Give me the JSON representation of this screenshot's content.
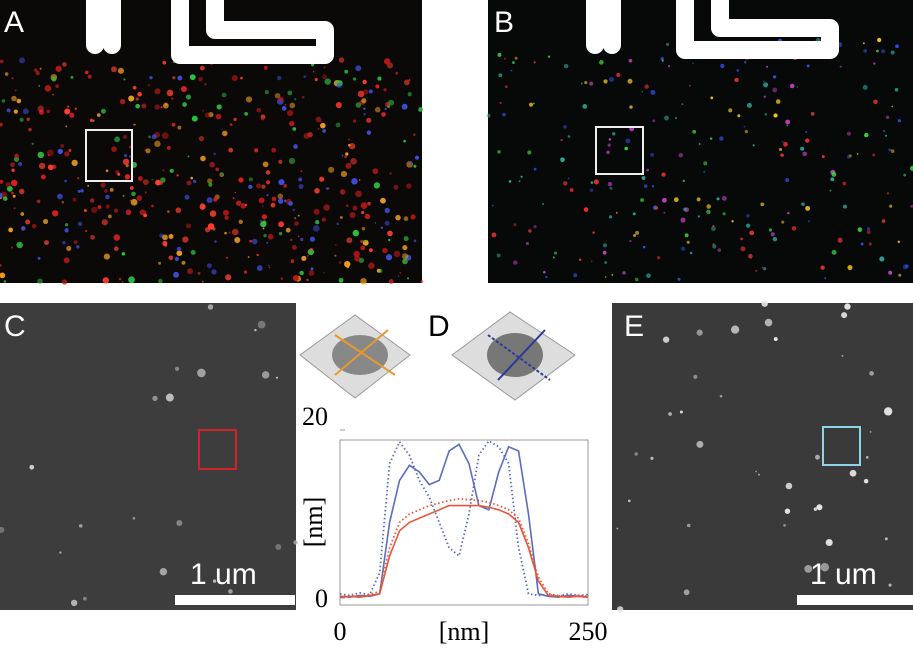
{
  "panels": {
    "a": "A",
    "b": "B",
    "c": "C",
    "d": "D",
    "e": "E"
  },
  "scale_bars": {
    "c": "1 um",
    "e": "1 um"
  },
  "chart_data": {
    "type": "line",
    "x": [
      0,
      10,
      20,
      30,
      40,
      50,
      60,
      70,
      80,
      90,
      100,
      110,
      120,
      130,
      140,
      150,
      160,
      170,
      180,
      190,
      200,
      210,
      220,
      230,
      240,
      250
    ],
    "series": [
      {
        "name": "blue solid",
        "color": "#5a6cc0",
        "dash": false,
        "values": [
          0.2,
          0.1,
          0.3,
          0.2,
          0.5,
          9,
          14,
          15.8,
          15,
          13.5,
          14,
          17.5,
          18.3,
          16,
          11,
          10.5,
          15,
          18,
          17.5,
          10,
          0.5,
          0.2,
          0.1,
          0.3,
          0.2,
          0.1
        ]
      },
      {
        "name": "blue dotted",
        "color": "#5a6cc0",
        "dash": true,
        "values": [
          0.5,
          0.3,
          0.6,
          0.4,
          3,
          16,
          18.6,
          17,
          14,
          12,
          9,
          6,
          5,
          10,
          17,
          18.7,
          18,
          16,
          6,
          0.5,
          0.3,
          0.4,
          0.2,
          0.5,
          0.3,
          0.4
        ]
      },
      {
        "name": "red solid",
        "color": "#e8553a",
        "dash": false,
        "values": [
          0.1,
          0.2,
          0.1,
          0.3,
          0.5,
          5,
          8,
          9,
          9.5,
          10,
          10.5,
          11,
          11,
          11,
          11,
          10.8,
          10.5,
          10,
          9,
          6,
          2,
          0.3,
          0.2,
          0.1,
          0.2,
          0.1
        ]
      },
      {
        "name": "red dotted",
        "color": "#e8553a",
        "dash": true,
        "values": [
          0.2,
          0.3,
          0.2,
          0.4,
          0.8,
          6,
          9,
          10,
          10.5,
          11,
          11.3,
          11.6,
          11.8,
          11.7,
          11.6,
          11.4,
          11,
          10.5,
          9.5,
          6.5,
          2.5,
          0.5,
          0.3,
          0.2,
          0.3,
          0.2
        ]
      }
    ],
    "xlabel": "[nm]",
    "ylabel": "[nm]",
    "xlim": [
      0,
      250
    ],
    "ylim": [
      0,
      20
    ],
    "xticks": [
      0,
      250
    ],
    "yticks": [
      0,
      20
    ]
  }
}
